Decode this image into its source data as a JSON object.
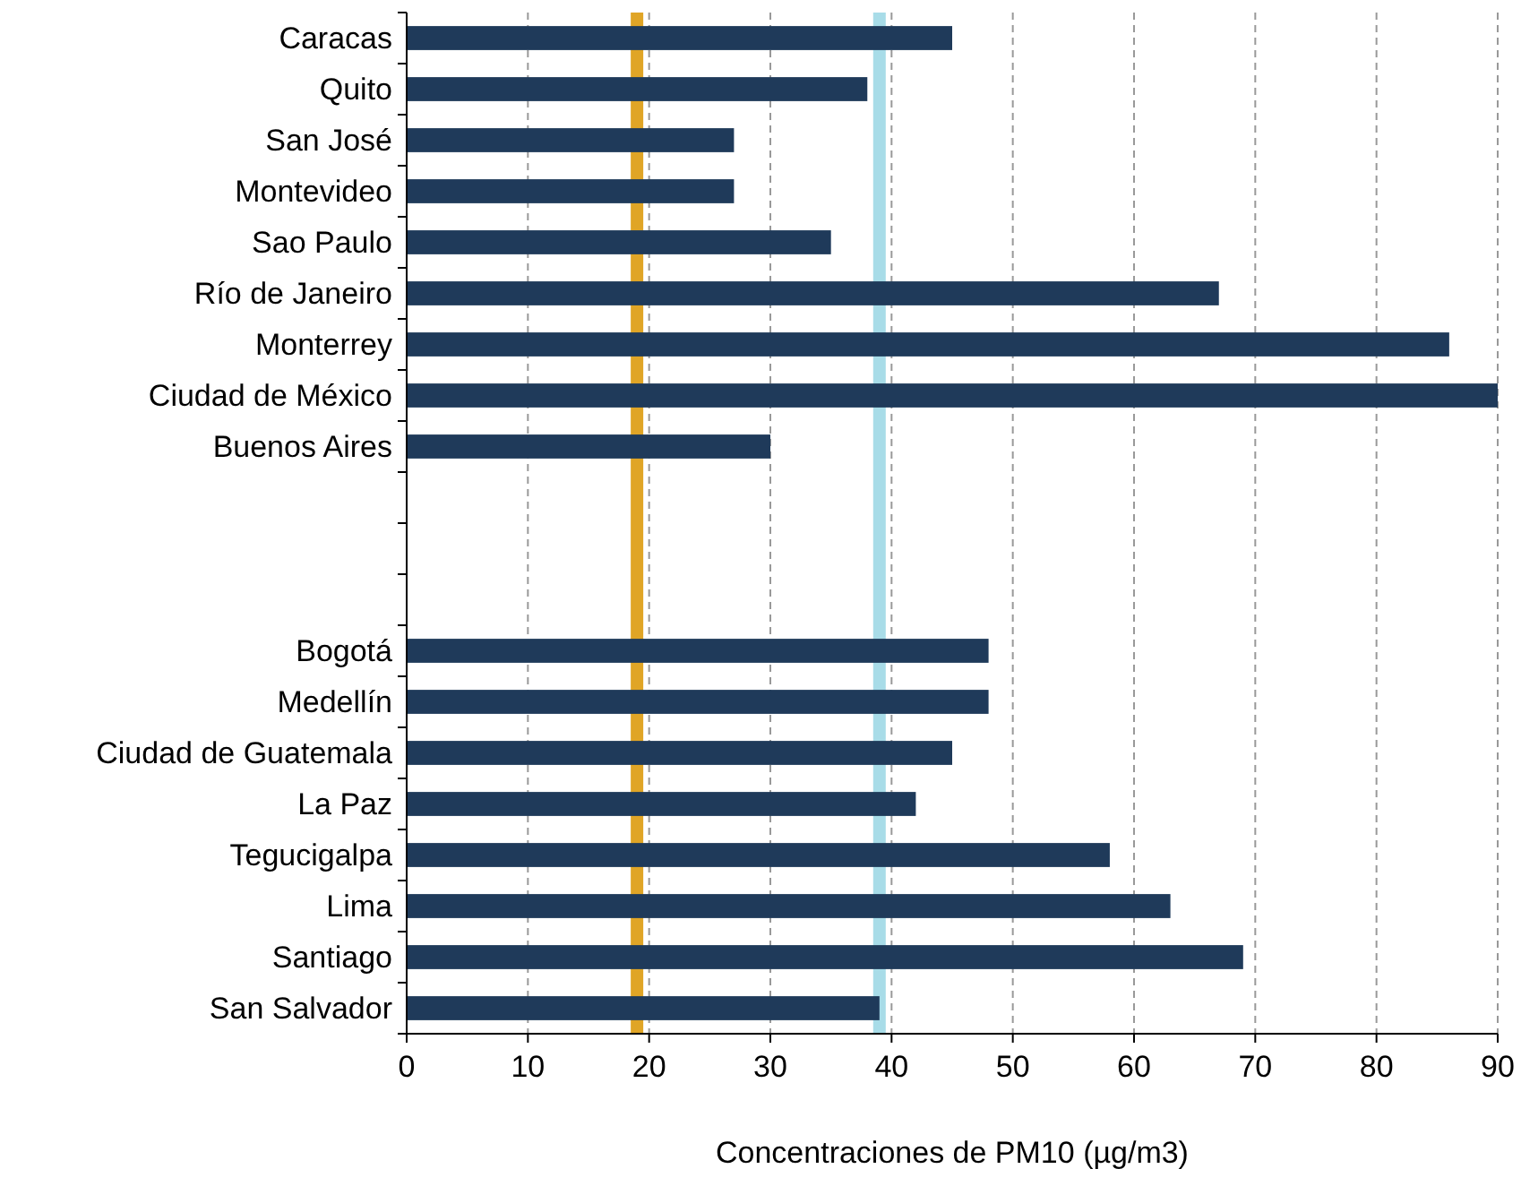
{
  "chart_data": {
    "type": "bar",
    "orientation": "horizontal",
    "xlabel": "Concentraciones de PM10  (µg/m3)",
    "categories": [
      "Caracas",
      "Quito",
      "San José",
      "Montevideo",
      "Sao Paulo",
      "Río de Janeiro",
      "Monterrey",
      "Ciudad de México",
      "Buenos Aires",
      null,
      null,
      null,
      "Bogotá",
      "Medellín",
      "Ciudad de Guatemala",
      "La Paz",
      "Tegucigalpa",
      "Lima",
      "Santiago",
      "San Salvador"
    ],
    "values": [
      45,
      38,
      27,
      27,
      35,
      67,
      86,
      90,
      30,
      null,
      null,
      null,
      48,
      48,
      45,
      42,
      58,
      63,
      69,
      39
    ],
    "color": "#1f3a5a",
    "xlim": [
      0,
      90
    ],
    "xticks": [
      0,
      10,
      20,
      30,
      40,
      50,
      60,
      70,
      80,
      90
    ],
    "grid": "x",
    "ref_lines": [
      {
        "axis": "x",
        "value": 19,
        "label": null,
        "color": "#e0a526"
      },
      {
        "axis": "x",
        "value": 39,
        "label": null,
        "color": "#a8dce8"
      }
    ]
  }
}
